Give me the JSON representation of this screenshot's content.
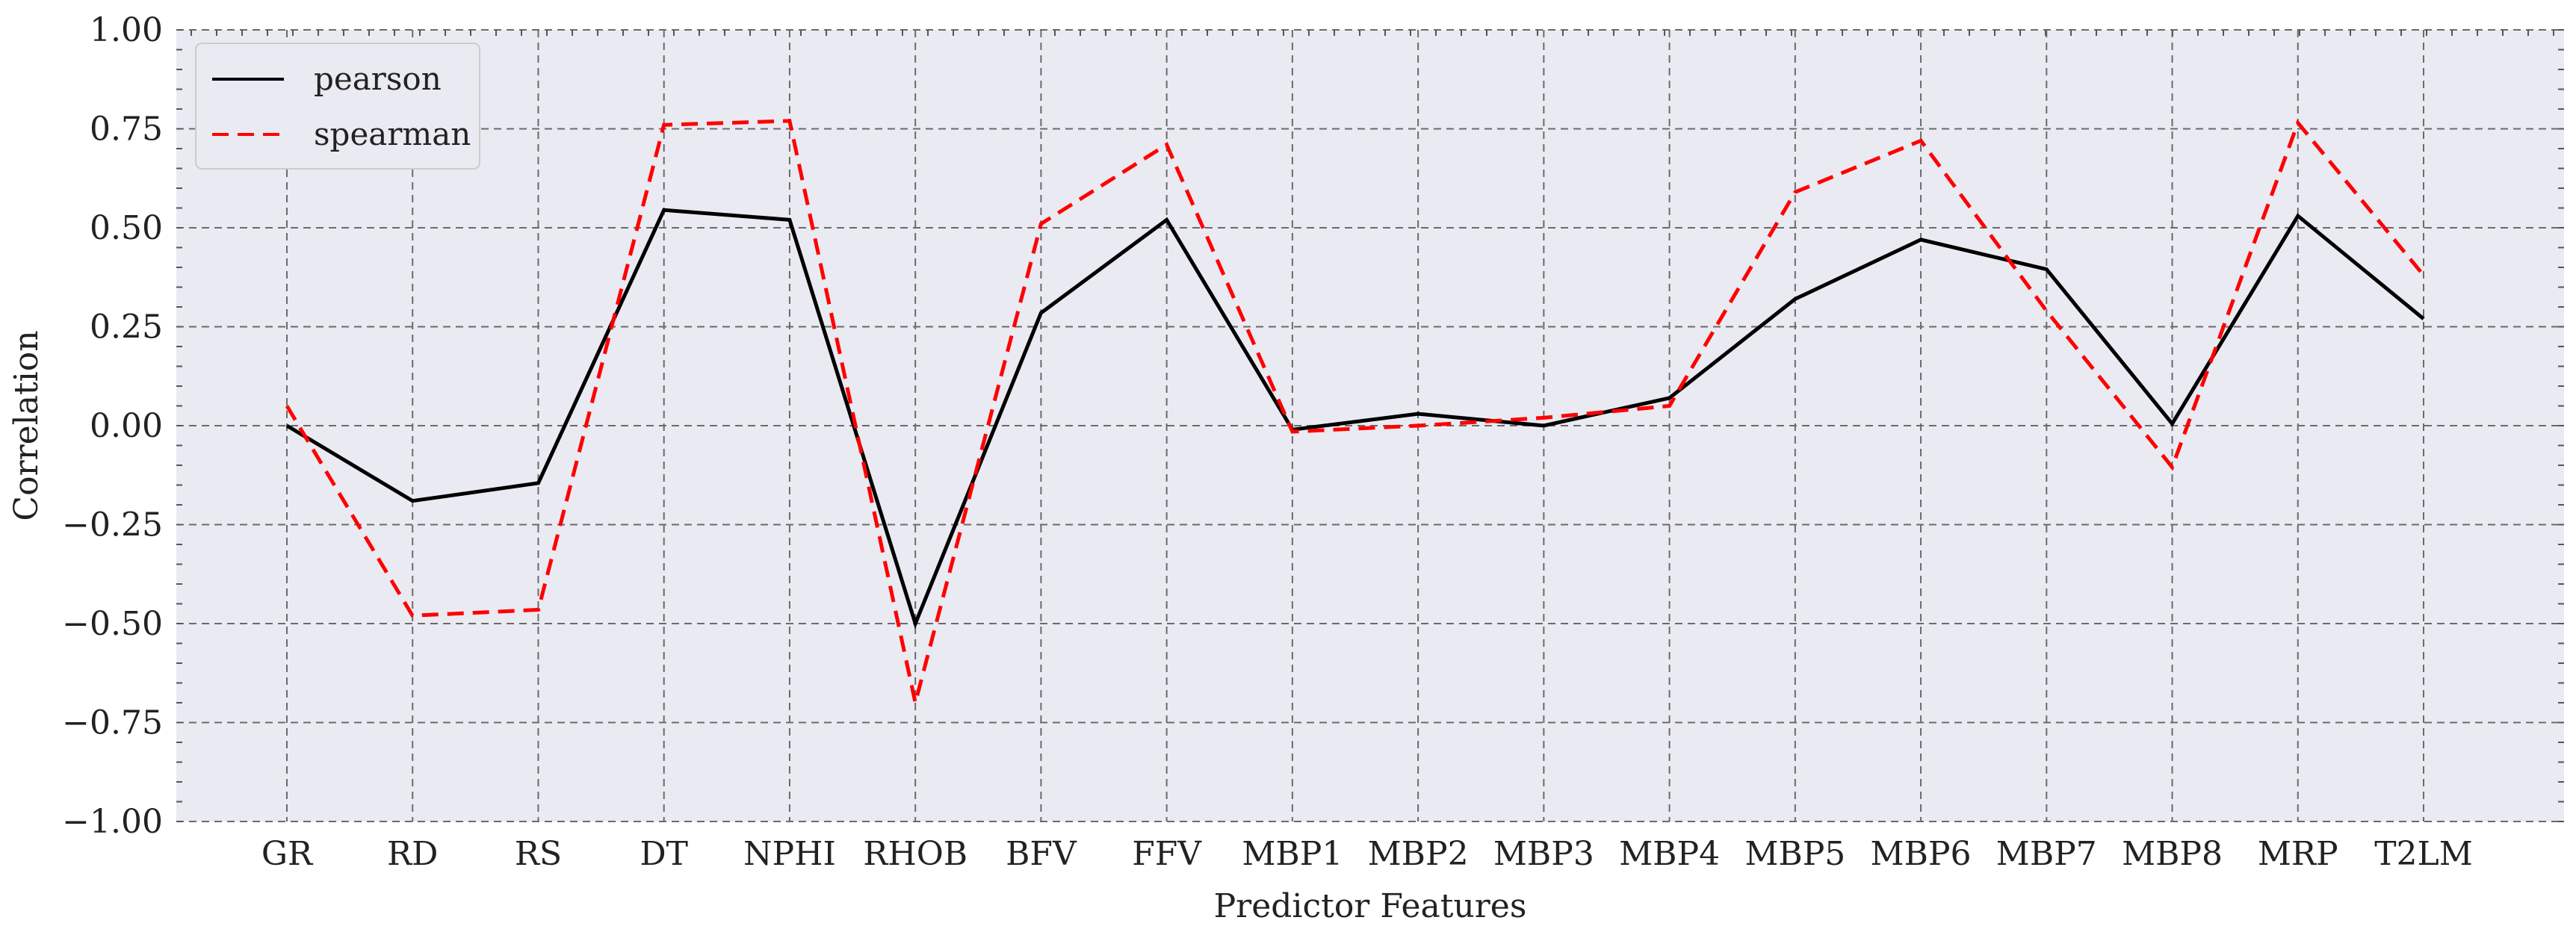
{
  "chart_data": {
    "type": "line",
    "title": "",
    "xlabel": "Predictor Features",
    "ylabel": "Correlation",
    "ylim": [
      -1.0,
      1.0
    ],
    "yticks": [
      "1.00",
      "0.75",
      "0.50",
      "0.25",
      "0.00",
      "−0.25",
      "−0.50",
      "−0.75",
      "−1.00"
    ],
    "ytick_values": [
      1.0,
      0.75,
      0.5,
      0.25,
      0.0,
      -0.25,
      -0.5,
      -0.75,
      -1.0
    ],
    "grid": true,
    "legend_position": "top-left",
    "categories": [
      "GR",
      "RD",
      "RS",
      "DT",
      "NPHI",
      "RHOB",
      "BFV",
      "FFV",
      "MBP1",
      "MBP2",
      "MBP3",
      "MBP4",
      "MBP5",
      "MBP6",
      "MBP7",
      "MBP8",
      "MRP",
      "T2LM"
    ],
    "series": [
      {
        "name": "pearson",
        "color": "#000000",
        "style": "solid",
        "values": [
          0.0,
          -0.19,
          -0.145,
          0.545,
          0.52,
          -0.5,
          0.285,
          0.52,
          -0.01,
          0.03,
          0.0,
          0.07,
          0.32,
          0.47,
          0.395,
          0.005,
          0.53,
          0.27
        ]
      },
      {
        "name": "spearman",
        "color": "#ff0000",
        "style": "dashed",
        "values": [
          0.05,
          -0.48,
          -0.465,
          0.76,
          0.77,
          -0.7,
          0.51,
          0.71,
          -0.015,
          0.0,
          0.02,
          0.05,
          0.59,
          0.72,
          0.29,
          -0.105,
          0.765,
          0.38
        ]
      }
    ]
  }
}
